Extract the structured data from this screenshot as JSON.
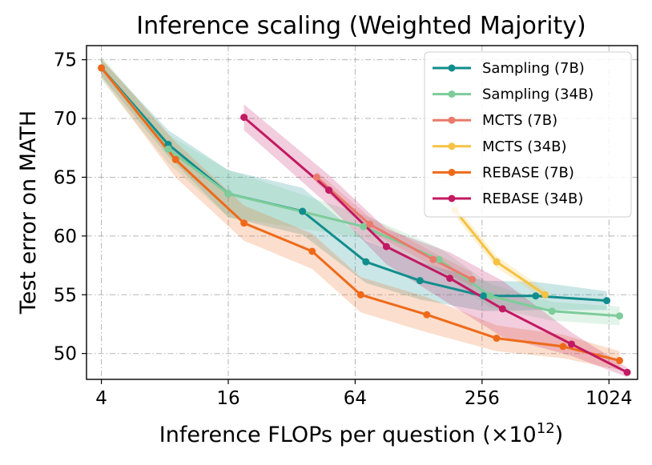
{
  "chart_data": {
    "type": "line",
    "title": "Inference scaling (Weighted Majority)",
    "xlabel": "Inference FLOPs per question (×10",
    "xlabel_sup": "12",
    "xlabel_end": ")",
    "ylabel": "Test error on MATH",
    "xscale": "log2",
    "xlim": [
      3.4,
      1400
    ],
    "ylim": [
      47.8,
      76.2
    ],
    "xticks": [
      4,
      16,
      64,
      256,
      1024
    ],
    "xtick_labels": [
      "4",
      "16",
      "64",
      "256",
      "1024"
    ],
    "yticks": [
      50,
      55,
      60,
      65,
      70,
      75
    ],
    "ytick_labels": [
      "50",
      "55",
      "60",
      "65",
      "70",
      "75"
    ],
    "grid": true,
    "legend_position": "top-right",
    "series": [
      {
        "name": "Sampling (7B)",
        "color": "#128d8d",
        "x": [
          4,
          8.3,
          16,
          36,
          72,
          130,
          260,
          460,
          1000
        ],
        "y": [
          74.3,
          67.8,
          63.6,
          62.1,
          57.8,
          56.2,
          54.9,
          54.9,
          54.5
        ],
        "lower": [
          73.6,
          66.8,
          61.6,
          60.1,
          56.0,
          54.6,
          53.6,
          53.7,
          53.7
        ],
        "upper": [
          75.0,
          69.0,
          65.6,
          64.1,
          59.6,
          57.8,
          56.2,
          56.1,
          55.3
        ]
      },
      {
        "name": "Sampling (34B)",
        "color": "#7dcc9a",
        "x": [
          4,
          8.3,
          16,
          70,
          160,
          280,
          550,
          1150
        ],
        "y": [
          74.3,
          67.4,
          63.6,
          60.8,
          58.0,
          54.9,
          53.6,
          53.2
        ],
        "lower": [
          73.3,
          66.2,
          61.6,
          59.8,
          57.0,
          53.9,
          52.8,
          52.4
        ],
        "upper": [
          75.3,
          68.6,
          65.6,
          61.8,
          59.0,
          55.9,
          54.4,
          54.0
        ]
      },
      {
        "name": "MCTS (7B)",
        "color": "#ea7a6b",
        "x": [
          42,
          75,
          150,
          230
        ],
        "y": [
          65.0,
          61.0,
          58.0,
          56.3
        ],
        "lower": [
          64.5,
          60.4,
          57.4,
          55.7
        ],
        "upper": [
          65.5,
          61.6,
          58.6,
          56.9
        ]
      },
      {
        "name": "MCTS (34B)",
        "color": "#f5c242",
        "x": [
          190,
          300,
          510
        ],
        "y": [
          62.2,
          57.8,
          55.0
        ],
        "lower": [
          61.7,
          57.3,
          54.6
        ],
        "upper": [
          62.7,
          58.3,
          55.4
        ]
      },
      {
        "name": "REBASE (7B)",
        "color": "#ee6a1a",
        "x": [
          4,
          9,
          19,
          40,
          68,
          140,
          300,
          620,
          1150
        ],
        "y": [
          74.3,
          66.5,
          61.1,
          58.7,
          55.0,
          53.3,
          51.3,
          50.6,
          49.4
        ],
        "lower": [
          73.5,
          65.0,
          59.6,
          57.2,
          53.5,
          51.8,
          50.2,
          49.6,
          48.6
        ],
        "upper": [
          75.1,
          68.0,
          62.6,
          60.2,
          56.5,
          54.8,
          52.4,
          51.6,
          50.2
        ]
      },
      {
        "name": "REBASE (34B)",
        "color": "#c21a62",
        "x": [
          19,
          48,
          90,
          180,
          320,
          680,
          1250
        ],
        "y": [
          70.1,
          63.9,
          59.1,
          56.4,
          53.8,
          50.8,
          48.4
        ],
        "lower": [
          69.0,
          62.6,
          57.6,
          54.2,
          51.4,
          49.8,
          48.0
        ],
        "upper": [
          71.2,
          65.2,
          60.6,
          58.6,
          56.2,
          51.8,
          48.8
        ]
      }
    ]
  }
}
